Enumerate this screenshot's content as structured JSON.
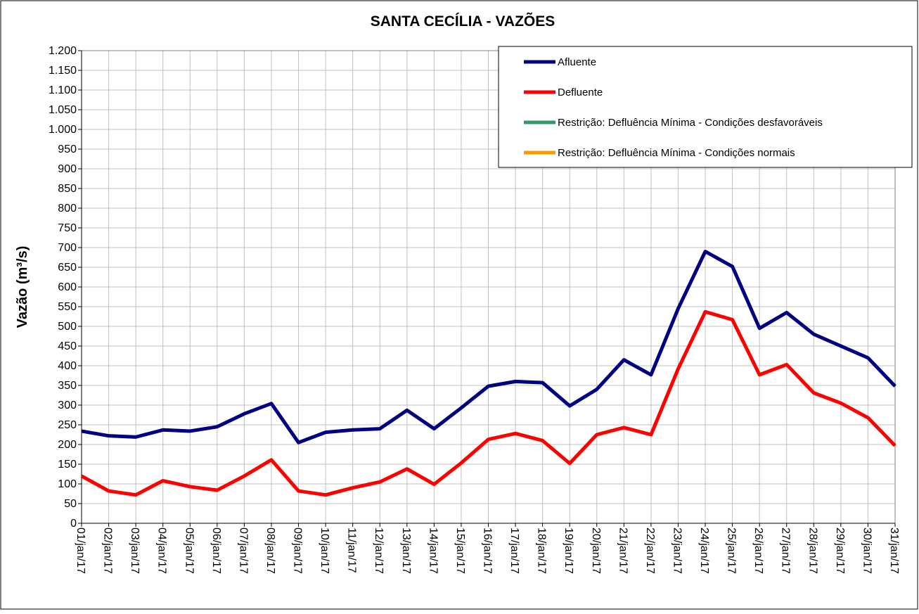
{
  "chart_data": {
    "type": "line",
    "title": "SANTA CECÍLIA - VAZÕES",
    "y_label": "Vazão (m³/s)",
    "categories": [
      "01/jan/17",
      "02/jan/17",
      "03/jan/17",
      "04/jan/17",
      "05/jan/17",
      "06/jan/17",
      "07/jan/17",
      "08/jan/17",
      "09/jan/17",
      "10/jan/17",
      "11/jan/17",
      "12/jan/17",
      "13/jan/17",
      "14/jan/17",
      "15/jan/17",
      "16/jan/17",
      "17/jan/17",
      "18/jan/17",
      "19/jan/17",
      "20/jan/17",
      "21/jan/17",
      "22/jan/17",
      "23/jan/17",
      "24/jan/17",
      "25/jan/17",
      "26/jan/17",
      "27/jan/17",
      "28/jan/17",
      "29/jan/17",
      "30/jan/17",
      "31/jan/17"
    ],
    "series": [
      {
        "name": "Afluente",
        "color": "#000080",
        "values": [
          234,
          222,
          219,
          237,
          234,
          245,
          278,
          304,
          205,
          231,
          237,
          240,
          287,
          240,
          293,
          348,
          360,
          357,
          298,
          340,
          415,
          377,
          545,
          690,
          652,
          495,
          535,
          480,
          450,
          420,
          348
        ]
      },
      {
        "name": "Defluente",
        "color": "#ff0000",
        "values": [
          120,
          82,
          72,
          108,
          93,
          84,
          120,
          161,
          82,
          72,
          90,
          105,
          138,
          99,
          153,
          213,
          228,
          210,
          152,
          225,
          243,
          225,
          392,
          537,
          517,
          377,
          403,
          331,
          305,
          268,
          197
        ]
      },
      {
        "name": "Restrição: Defluência Mínima - Condições desfavoráveis",
        "color": "#339966",
        "values": [
          null,
          null,
          null,
          null,
          null,
          null,
          null,
          null,
          null,
          null,
          null,
          null,
          null,
          null,
          null,
          null,
          null,
          null,
          null,
          null,
          null,
          null,
          null,
          null,
          null,
          null,
          null,
          null,
          null,
          null,
          null
        ]
      },
      {
        "name": "Restrição: Defluência Mínima - Condições normais",
        "color": "#ff9900",
        "values": [
          null,
          null,
          null,
          null,
          null,
          null,
          null,
          null,
          null,
          null,
          null,
          null,
          null,
          null,
          null,
          null,
          null,
          null,
          null,
          null,
          null,
          null,
          null,
          null,
          null,
          null,
          null,
          null,
          null,
          null,
          null
        ]
      }
    ],
    "ylim": [
      0,
      1200
    ],
    "yticks": [
      0,
      50,
      100,
      150,
      200,
      250,
      300,
      350,
      400,
      450,
      500,
      550,
      600,
      650,
      700,
      750,
      800,
      850,
      900,
      950,
      {
        "value": 1000,
        "label": "1.000"
      },
      {
        "value": 1050,
        "label": "1.050"
      },
      {
        "value": 1100,
        "label": "1.100"
      },
      {
        "value": 1150,
        "label": "1.150"
      },
      {
        "value": 1200,
        "label": "1.200"
      }
    ],
    "grid": true,
    "legend": "upper right"
  }
}
